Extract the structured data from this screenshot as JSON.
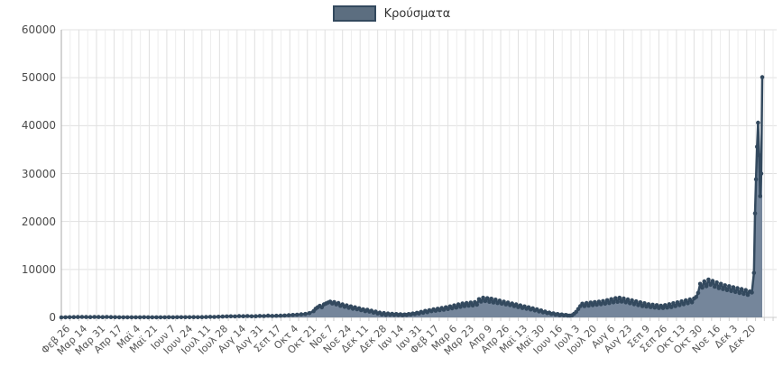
{
  "legend": {
    "label": "Κρούσματα"
  },
  "colors": {
    "line": "#33495e",
    "marker": "#33495e",
    "area_fill": "#75869b",
    "legend_swatch_fill": "#5c6e80",
    "legend_swatch_border": "#33495e",
    "grid_major": "#e0e0e0",
    "grid_minor": "#ededed",
    "axis_y_line": "#aaaaaa",
    "axis_x_line": "#cccccc",
    "tick_mark": "#cccccc",
    "y_label_text": "#4a4a4a",
    "x_label_text": "#555555",
    "background": "#ffffff"
  },
  "chart_data": {
    "type": "area",
    "title": "",
    "legend_entries": [
      "Κρούσματα"
    ],
    "legend_position": "top-center",
    "grid": true,
    "ylim": [
      0,
      60000
    ],
    "y_ticks": [
      0,
      10000,
      20000,
      30000,
      40000,
      50000,
      60000
    ],
    "x_tick_labels": [
      "Φεβ 26",
      "Μαρ 14",
      "Μαρ 31",
      "Απρ 17",
      "Μαϊ 4",
      "Μαϊ 21",
      "Ιουν 7",
      "Ιουν 24",
      "Ιουλ 11",
      "Ιουλ 28",
      "Αυγ 14",
      "Αυγ 31",
      "Σεπ 17",
      "Οκτ 4",
      "Οκτ 21",
      "Νοε 7",
      "Νοε 24",
      "Δεκ 11",
      "Δεκ 28",
      "Ιαν 14",
      "Ιαν 31",
      "Φεβ 17",
      "Μαρ 6",
      "Μαρ 23",
      "Απρ 9",
      "Απρ 26",
      "Μαϊ 13",
      "Μαϊ 30",
      "Ιουν 16",
      "Ιουλ 3",
      "Ιουλ 20",
      "Αυγ 6",
      "Αυγ 23",
      "Σεπ 9",
      "Σεπ 26",
      "Οκτ 13",
      "Οκτ 30",
      "Νοε 16",
      "Δεκ 3",
      "Δεκ 20"
    ],
    "days_per_tick": 17,
    "x_unit": "day index from Φεβ 26",
    "points": [
      [
        0,
        3
      ],
      [
        4,
        10
      ],
      [
        8,
        45
      ],
      [
        12,
        60
      ],
      [
        16,
        80
      ],
      [
        20,
        95
      ],
      [
        24,
        70
      ],
      [
        28,
        65
      ],
      [
        32,
        100
      ],
      [
        36,
        80
      ],
      [
        40,
        60
      ],
      [
        44,
        90
      ],
      [
        48,
        55
      ],
      [
        52,
        35
      ],
      [
        56,
        25
      ],
      [
        60,
        20
      ],
      [
        64,
        15
      ],
      [
        68,
        25
      ],
      [
        72,
        18
      ],
      [
        76,
        15
      ],
      [
        80,
        30
      ],
      [
        84,
        20
      ],
      [
        88,
        12
      ],
      [
        92,
        25
      ],
      [
        96,
        20
      ],
      [
        100,
        16
      ],
      [
        104,
        30
      ],
      [
        108,
        25
      ],
      [
        112,
        35
      ],
      [
        116,
        30
      ],
      [
        120,
        42
      ],
      [
        124,
        35
      ],
      [
        128,
        52
      ],
      [
        132,
        45
      ],
      [
        136,
        60
      ],
      [
        140,
        80
      ],
      [
        144,
        110
      ],
      [
        148,
        100
      ],
      [
        152,
        130
      ],
      [
        156,
        160
      ],
      [
        160,
        200
      ],
      [
        164,
        230
      ],
      [
        168,
        210
      ],
      [
        172,
        260
      ],
      [
        176,
        240
      ],
      [
        180,
        280
      ],
      [
        184,
        230
      ],
      [
        188,
        250
      ],
      [
        192,
        310
      ],
      [
        196,
        280
      ],
      [
        200,
        350
      ],
      [
        204,
        300
      ],
      [
        208,
        330
      ],
      [
        212,
        360
      ],
      [
        216,
        400
      ],
      [
        220,
        450
      ],
      [
        224,
        500
      ],
      [
        228,
        560
      ],
      [
        232,
        640
      ],
      [
        236,
        720
      ],
      [
        240,
        880
      ],
      [
        244,
        1300
      ],
      [
        246,
        1800
      ],
      [
        248,
        2100
      ],
      [
        250,
        2400
      ],
      [
        252,
        2100
      ],
      [
        254,
        2700
      ],
      [
        256,
        2900
      ],
      [
        258,
        3100
      ],
      [
        260,
        3300
      ],
      [
        262,
        2900
      ],
      [
        264,
        3200
      ],
      [
        266,
        2700
      ],
      [
        268,
        3000
      ],
      [
        270,
        2400
      ],
      [
        272,
        2700
      ],
      [
        274,
        2200
      ],
      [
        276,
        2500
      ],
      [
        278,
        2000
      ],
      [
        280,
        2300
      ],
      [
        282,
        1800
      ],
      [
        284,
        2100
      ],
      [
        286,
        1700
      ],
      [
        288,
        1900
      ],
      [
        290,
        1500
      ],
      [
        292,
        1700
      ],
      [
        294,
        1300
      ],
      [
        296,
        1600
      ],
      [
        298,
        1200
      ],
      [
        300,
        1400
      ],
      [
        302,
        1000
      ],
      [
        304,
        1200
      ],
      [
        306,
        800
      ],
      [
        308,
        1000
      ],
      [
        310,
        600
      ],
      [
        312,
        900
      ],
      [
        314,
        500
      ],
      [
        316,
        800
      ],
      [
        318,
        550
      ],
      [
        320,
        750
      ],
      [
        322,
        500
      ],
      [
        324,
        700
      ],
      [
        326,
        480
      ],
      [
        328,
        650
      ],
      [
        330,
        450
      ],
      [
        332,
        600
      ],
      [
        334,
        500
      ],
      [
        336,
        700
      ],
      [
        338,
        600
      ],
      [
        340,
        800
      ],
      [
        342,
        700
      ],
      [
        344,
        950
      ],
      [
        346,
        800
      ],
      [
        348,
        1150
      ],
      [
        350,
        950
      ],
      [
        352,
        1350
      ],
      [
        354,
        1100
      ],
      [
        356,
        1500
      ],
      [
        358,
        1300
      ],
      [
        360,
        1700
      ],
      [
        362,
        1400
      ],
      [
        364,
        1800
      ],
      [
        366,
        1500
      ],
      [
        368,
        1950
      ],
      [
        370,
        1600
      ],
      [
        372,
        2100
      ],
      [
        374,
        1750
      ],
      [
        376,
        2300
      ],
      [
        378,
        1900
      ],
      [
        380,
        2500
      ],
      [
        382,
        2050
      ],
      [
        384,
        2700
      ],
      [
        386,
        2200
      ],
      [
        388,
        2900
      ],
      [
        390,
        2350
      ],
      [
        392,
        3000
      ],
      [
        394,
        2450
      ],
      [
        396,
        3100
      ],
      [
        398,
        2500
      ],
      [
        400,
        3200
      ],
      [
        402,
        2650
      ],
      [
        404,
        3800
      ],
      [
        406,
        3300
      ],
      [
        408,
        4100
      ],
      [
        410,
        3400
      ],
      [
        412,
        4000
      ],
      [
        414,
        3250
      ],
      [
        416,
        3900
      ],
      [
        418,
        3100
      ],
      [
        420,
        3700
      ],
      [
        422,
        3000
      ],
      [
        424,
        3500
      ],
      [
        426,
        2850
      ],
      [
        428,
        3300
      ],
      [
        430,
        2700
      ],
      [
        432,
        3100
      ],
      [
        434,
        2550
      ],
      [
        436,
        2900
      ],
      [
        438,
        2350
      ],
      [
        440,
        2700
      ],
      [
        442,
        2150
      ],
      [
        444,
        2500
      ],
      [
        446,
        1950
      ],
      [
        448,
        2300
      ],
      [
        450,
        1800
      ],
      [
        452,
        2100
      ],
      [
        454,
        1650
      ],
      [
        456,
        1900
      ],
      [
        458,
        1450
      ],
      [
        460,
        1700
      ],
      [
        462,
        1250
      ],
      [
        464,
        1450
      ],
      [
        466,
        1050
      ],
      [
        468,
        1200
      ],
      [
        470,
        880
      ],
      [
        472,
        1000
      ],
      [
        474,
        720
      ],
      [
        476,
        850
      ],
      [
        478,
        580
      ],
      [
        480,
        700
      ],
      [
        482,
        460
      ],
      [
        484,
        600
      ],
      [
        486,
        420
      ],
      [
        488,
        500
      ],
      [
        490,
        380
      ],
      [
        492,
        380
      ],
      [
        494,
        430
      ],
      [
        496,
        750
      ],
      [
        498,
        1150
      ],
      [
        500,
        1750
      ],
      [
        502,
        2350
      ],
      [
        504,
        2850
      ],
      [
        506,
        2350
      ],
      [
        508,
        3000
      ],
      [
        510,
        2450
      ],
      [
        512,
        3100
      ],
      [
        514,
        2550
      ],
      [
        516,
        3200
      ],
      [
        518,
        2650
      ],
      [
        520,
        3300
      ],
      [
        522,
        2750
      ],
      [
        524,
        3400
      ],
      [
        526,
        2850
      ],
      [
        528,
        3600
      ],
      [
        530,
        3000
      ],
      [
        532,
        3800
      ],
      [
        534,
        3150
      ],
      [
        536,
        4000
      ],
      [
        538,
        3250
      ],
      [
        540,
        4100
      ],
      [
        542,
        3300
      ],
      [
        544,
        3950
      ],
      [
        546,
        3150
      ],
      [
        548,
        3750
      ],
      [
        550,
        2950
      ],
      [
        552,
        3550
      ],
      [
        554,
        2750
      ],
      [
        556,
        3350
      ],
      [
        558,
        2550
      ],
      [
        560,
        3150
      ],
      [
        562,
        2350
      ],
      [
        564,
        2950
      ],
      [
        566,
        2250
      ],
      [
        568,
        2750
      ],
      [
        570,
        2150
      ],
      [
        572,
        2650
      ],
      [
        574,
        2050
      ],
      [
        576,
        2550
      ],
      [
        578,
        1950
      ],
      [
        580,
        2450
      ],
      [
        582,
        1950
      ],
      [
        584,
        2550
      ],
      [
        586,
        2050
      ],
      [
        588,
        2750
      ],
      [
        590,
        2150
      ],
      [
        592,
        2950
      ],
      [
        594,
        2350
      ],
      [
        596,
        3150
      ],
      [
        598,
        2550
      ],
      [
        600,
        3350
      ],
      [
        602,
        2750
      ],
      [
        604,
        3550
      ],
      [
        606,
        2950
      ],
      [
        608,
        3750
      ],
      [
        610,
        3150
      ],
      [
        612,
        3950
      ],
      [
        614,
        4250
      ],
      [
        616,
        5100
      ],
      [
        618,
        7000
      ],
      [
        620,
        6200
      ],
      [
        622,
        7500
      ],
      [
        624,
        6500
      ],
      [
        626,
        7900
      ],
      [
        628,
        6800
      ],
      [
        630,
        7600
      ],
      [
        632,
        6400
      ],
      [
        634,
        7300
      ],
      [
        636,
        6100
      ],
      [
        638,
        7000
      ],
      [
        640,
        5900
      ],
      [
        642,
        6700
      ],
      [
        644,
        5700
      ],
      [
        646,
        6500
      ],
      [
        648,
        5500
      ],
      [
        650,
        6300
      ],
      [
        652,
        5300
      ],
      [
        654,
        6100
      ],
      [
        656,
        5100
      ],
      [
        658,
        5900
      ],
      [
        660,
        4900
      ],
      [
        662,
        5700
      ],
      [
        664,
        4700
      ],
      [
        666,
        5400
      ],
      [
        668,
        5200
      ],
      [
        670,
        9300
      ],
      [
        671,
        21700
      ],
      [
        672,
        28800
      ],
      [
        673,
        35600
      ],
      [
        674,
        40600
      ],
      [
        675,
        33800
      ],
      [
        676,
        25300
      ],
      [
        677,
        30000
      ],
      [
        678,
        50100
      ]
    ]
  }
}
